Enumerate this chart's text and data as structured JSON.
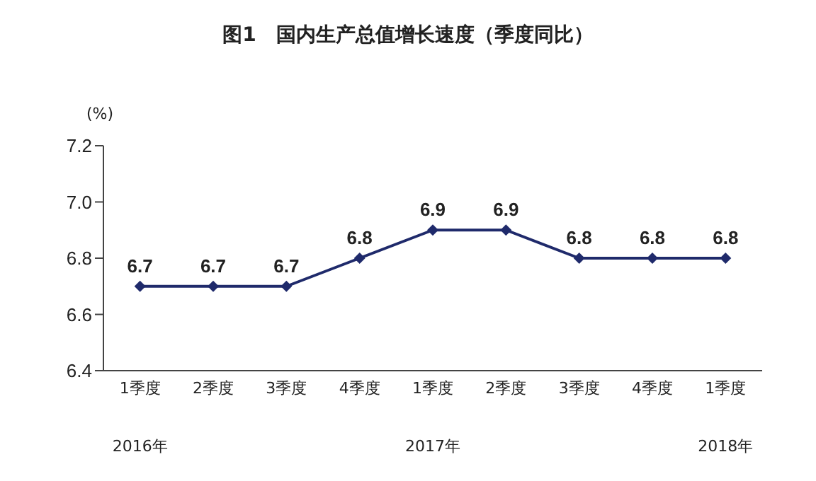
{
  "chart_data": {
    "type": "line",
    "title": "图1　国内生产总值增长速度（季度同比）",
    "ylabel": "(%)",
    "categories": [
      "1季度",
      "2季度",
      "3季度",
      "4季度",
      "1季度",
      "2季度",
      "3季度",
      "4季度",
      "1季度"
    ],
    "series": [
      {
        "color": "#1f2a6b",
        "values": [
          6.7,
          6.7,
          6.7,
          6.8,
          6.9,
          6.9,
          6.8,
          6.8,
          6.8
        ]
      }
    ],
    "ylim": [
      6.4,
      7.2
    ],
    "yticks": [
      6.4,
      6.6,
      6.8,
      {
        "value": 7.0,
        "label": "7.0"
      },
      7.2
    ],
    "annotations": [
      "2016年",
      "2017年",
      "2018年"
    ],
    "data_labels": true,
    "marker": "diamond",
    "line_style": "solid",
    "grid": false,
    "legend": false
  }
}
